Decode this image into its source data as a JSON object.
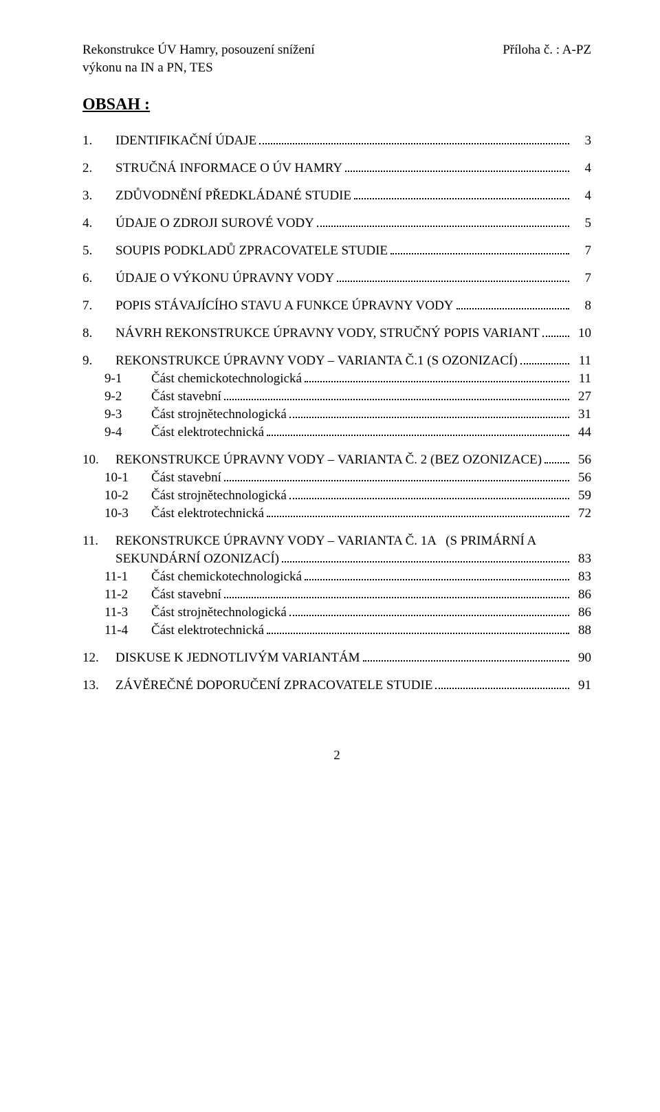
{
  "header": {
    "left_line1": "Rekonstrukce ÚV Hamry, posouzení snížení",
    "left_line2": "výkonu na IN a PN, TES",
    "right": "Příloha č. : A-PZ"
  },
  "heading": "OBSAH :",
  "toc": [
    {
      "type": "section",
      "num": "1.",
      "label": "IDENTIFIKAČNÍ ÚDAJE",
      "page": "3"
    },
    {
      "type": "section",
      "num": "2.",
      "label": "STRUČNÁ INFORMACE O ÚV HAMRY",
      "page": "4"
    },
    {
      "type": "section",
      "num": "3.",
      "label": "ZDŮVODNĚNÍ PŘEDKLÁDANÉ STUDIE",
      "page": "4"
    },
    {
      "type": "section",
      "num": "4.",
      "label": "ÚDAJE O ZDROJI SUROVÉ VODY",
      "page": "5"
    },
    {
      "type": "section",
      "num": "5.",
      "label": "SOUPIS PODKLADŮ ZPRACOVATELE STUDIE",
      "page": "7"
    },
    {
      "type": "section",
      "num": "6.",
      "label": "ÚDAJE O VÝKONU ÚPRAVNY VODY",
      "page": "7"
    },
    {
      "type": "section",
      "num": "7.",
      "label": "POPIS STÁVAJÍCÍHO STAVU A FUNKCE ÚPRAVNY VODY",
      "page": "8"
    },
    {
      "type": "section",
      "num": "8.",
      "label": "NÁVRH REKONSTRUKCE ÚPRAVNY VODY, STRUČNÝ POPIS VARIANT",
      "page": "10"
    },
    {
      "type": "section",
      "num": "9.",
      "label": "REKONSTRUKCE ÚPRAVNY VODY – VARIANTA Č.1 (S OZONIZACÍ)",
      "page": "11"
    },
    {
      "type": "sub",
      "num": "9-1",
      "label": "Část chemickotechnologická",
      "page": "11"
    },
    {
      "type": "sub",
      "num": "9-2",
      "label": "Část stavební",
      "page": "27"
    },
    {
      "type": "sub",
      "num": "9-3",
      "label": "Část strojnětechnologická",
      "page": "31"
    },
    {
      "type": "sub",
      "num": "9-4",
      "label": "Část elektrotechnická",
      "page": "44"
    },
    {
      "type": "section",
      "num": "10.",
      "label": "REKONSTRUKCE ÚPRAVNY VODY – VARIANTA Č. 2 (BEZ OZONIZACE)",
      "page": "56"
    },
    {
      "type": "sub",
      "num": "10-1",
      "label": "Část stavební",
      "page": "56"
    },
    {
      "type": "sub",
      "num": "10-2",
      "label": "Část strojnětechnologická",
      "page": "59"
    },
    {
      "type": "sub",
      "num": "10-3",
      "label": "Část elektrotechnická",
      "page": "72"
    },
    {
      "type": "section-multi",
      "num": "11.",
      "label_line1": "REKONSTRUKCE ÚPRAVNY VODY – VARIANTA Č. 1A   (S PRIMÁRNÍ A",
      "label_line2": "SEKUNDÁRNÍ OZONIZACÍ)",
      "page": "83"
    },
    {
      "type": "sub",
      "num": "11-1",
      "label": "Část chemickotechnologická",
      "page": "83"
    },
    {
      "type": "sub",
      "num": "11-2",
      "label": "Část stavební",
      "page": "86"
    },
    {
      "type": "sub",
      "num": "11-3",
      "label": "Část strojnětechnologická",
      "page": "86"
    },
    {
      "type": "sub",
      "num": "11-4",
      "label": "Část elektrotechnická",
      "page": "88"
    },
    {
      "type": "section",
      "num": "12.",
      "label": "DISKUSE K JEDNOTLIVÝM VARIANTÁM",
      "page": "90"
    },
    {
      "type": "section",
      "num": "13.",
      "label": "ZÁVĚREČNÉ DOPORUČENÍ ZPRACOVATELE STUDIE",
      "page": "91"
    }
  ],
  "footer_page": "2"
}
